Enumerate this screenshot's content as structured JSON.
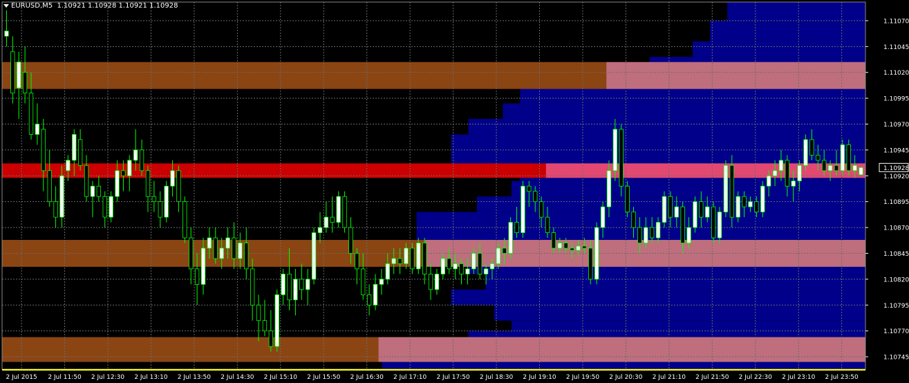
{
  "header": {
    "symbol": "EURUSD,M5",
    "ohlc": "1.10921 1.10928 1.10921 1.10928"
  },
  "colors": {
    "background": "#000000",
    "grid": "#6b6b6b",
    "candle_bull": "#ffffff",
    "candle_bear": "#000000",
    "candle_outline": "#00ff00",
    "profile": "#00008b",
    "value_area_overlay": "#ffa0ff",
    "level_major": "#cc0000",
    "level_minor": "#8b4513",
    "price_tag_bg": "#000000",
    "time_axis_accent": "#ffff00",
    "axis_text": "#ffffff"
  },
  "chart_data": {
    "type": "candlestick",
    "symbol": "EURUSD",
    "timeframe": "M5",
    "current_price": "1.10928",
    "ylim": [
      1.10733,
      1.11088
    ],
    "y_ticks": [
      "1.11070",
      "1.11045",
      "1.11020",
      "1.10995",
      "1.10970",
      "1.10945",
      "1.10920",
      "1.10895",
      "1.10870",
      "1.10845",
      "1.10820",
      "1.10795",
      "1.10770",
      "1.10745"
    ],
    "x_ticks": [
      "2 Jul 2015",
      "2 Jul 11:50",
      "2 Jul 12:30",
      "2 Jul 13:10",
      "2 Jul 13:50",
      "2 Jul 14:30",
      "2 Jul 15:10",
      "2 Jul 15:50",
      "2 Jul 16:30",
      "2 Jul 17:10",
      "2 Jul 17:50",
      "2 Jul 18:30",
      "2 Jul 19:10",
      "2 Jul 19:50",
      "2 Jul 20:30",
      "2 Jul 21:10",
      "2 Jul 21:50",
      "2 Jul 22:30",
      "2 Jul 23:10",
      "2 Jul 23:50"
    ],
    "levels": [
      {
        "kind": "minor",
        "low": 1.11004,
        "high": 1.1103
      },
      {
        "kind": "major",
        "low": 1.10918,
        "high": 1.10932
      },
      {
        "kind": "minor",
        "low": 1.10832,
        "high": 1.10858
      },
      {
        "kind": "minor",
        "low": 1.1074,
        "high": 1.10764
      }
    ],
    "value_area": [
      {
        "low": 1.11004,
        "high": 1.1103,
        "start": 0.7
      },
      {
        "low": 1.10918,
        "high": 1.10932,
        "start": 0.63
      },
      {
        "low": 1.10832,
        "high": 1.10858,
        "start": 0.49
      },
      {
        "low": 1.1074,
        "high": 1.10764,
        "start": 0.436
      }
    ],
    "volume_profile": [
      [
        1.11088,
        0.16
      ],
      [
        1.1107,
        0.18
      ],
      [
        1.1105,
        0.2
      ],
      [
        1.11035,
        0.25
      ],
      [
        1.1102,
        0.3
      ],
      [
        1.11005,
        0.4
      ],
      [
        1.1099,
        0.42
      ],
      [
        1.10975,
        0.46
      ],
      [
        1.1096,
        0.48
      ],
      [
        1.10945,
        0.48
      ],
      [
        1.1093,
        0.4
      ],
      [
        1.10915,
        0.41
      ],
      [
        1.109,
        0.45
      ],
      [
        1.10885,
        0.52
      ],
      [
        1.1087,
        0.52
      ],
      [
        1.10855,
        0.49
      ],
      [
        1.1084,
        0.46
      ],
      [
        1.10825,
        0.44
      ],
      [
        1.1081,
        0.48
      ],
      [
        1.10795,
        0.43
      ],
      [
        1.1078,
        0.41
      ],
      [
        1.1077,
        0.46
      ],
      [
        1.1075,
        0.56
      ]
    ],
    "ohlc": [
      [
        1.11055,
        1.1108,
        1.11045,
        1.1106
      ],
      [
        1.1104,
        1.11055,
        1.1099,
        1.11
      ],
      [
        1.11005,
        1.1104,
        1.10975,
        1.1103
      ],
      [
        1.1102,
        1.11045,
        1.1099,
        1.11
      ],
      [
        1.11,
        1.1102,
        1.10955,
        1.1096
      ],
      [
        1.1096,
        1.1099,
        1.1095,
        1.1097
      ],
      [
        1.10965,
        1.10975,
        1.10905,
        1.10925
      ],
      [
        1.10925,
        1.10945,
        1.1089,
        1.10895
      ],
      [
        1.10895,
        1.1091,
        1.1087,
        1.1088
      ],
      [
        1.1088,
        1.1093,
        1.1087,
        1.1092
      ],
      [
        1.10925,
        1.1094,
        1.10915,
        1.10935
      ],
      [
        1.10935,
        1.10965,
        1.1092,
        1.1096
      ],
      [
        1.10955,
        1.10965,
        1.10925,
        1.1093
      ],
      [
        1.1093,
        1.1094,
        1.10895,
        1.109
      ],
      [
        1.109,
        1.10915,
        1.1088,
        1.1091
      ],
      [
        1.1091,
        1.1092,
        1.10895,
        1.109
      ],
      [
        1.109,
        1.10905,
        1.1087,
        1.1088
      ],
      [
        1.1088,
        1.10905,
        1.10875,
        1.109
      ],
      [
        1.109,
        1.10935,
        1.10895,
        1.10925
      ],
      [
        1.10925,
        1.10935,
        1.10905,
        1.1092
      ],
      [
        1.1092,
        1.1094,
        1.10905,
        1.10935
      ],
      [
        1.10935,
        1.10965,
        1.10925,
        1.10945
      ],
      [
        1.10945,
        1.10955,
        1.1092,
        1.10925
      ],
      [
        1.10925,
        1.1093,
        1.10885,
        1.109
      ],
      [
        1.109,
        1.10915,
        1.10885,
        1.10895
      ],
      [
        1.10895,
        1.10905,
        1.1087,
        1.1088
      ],
      [
        1.1088,
        1.10915,
        1.10875,
        1.1091
      ],
      [
        1.1091,
        1.10935,
        1.109,
        1.10925
      ],
      [
        1.10925,
        1.1093,
        1.10885,
        1.10895
      ],
      [
        1.10895,
        1.109,
        1.10855,
        1.1086
      ],
      [
        1.1086,
        1.1087,
        1.10815,
        1.1083
      ],
      [
        1.1083,
        1.10845,
        1.10795,
        1.10815
      ],
      [
        1.10815,
        1.1086,
        1.10805,
        1.1085
      ],
      [
        1.1085,
        1.1087,
        1.1084,
        1.1086
      ],
      [
        1.1086,
        1.1087,
        1.10835,
        1.1084
      ],
      [
        1.1084,
        1.1086,
        1.1083,
        1.1085
      ],
      [
        1.1085,
        1.1087,
        1.1084,
        1.1086
      ],
      [
        1.1086,
        1.10875,
        1.1083,
        1.1084
      ],
      [
        1.1084,
        1.10865,
        1.1083,
        1.10855
      ],
      [
        1.10855,
        1.1087,
        1.1082,
        1.1083
      ],
      [
        1.1083,
        1.1084,
        1.1078,
        1.10795
      ],
      [
        1.10795,
        1.10805,
        1.1076,
        1.1078
      ],
      [
        1.1078,
        1.108,
        1.10765,
        1.1077
      ],
      [
        1.1077,
        1.1079,
        1.1075,
        1.10755
      ],
      [
        1.10755,
        1.1081,
        1.1075,
        1.10805
      ],
      [
        1.10805,
        1.1083,
        1.10795,
        1.10825
      ],
      [
        1.10825,
        1.1085,
        1.1079,
        1.108
      ],
      [
        1.108,
        1.1083,
        1.10785,
        1.1082
      ],
      [
        1.1082,
        1.10835,
        1.108,
        1.1081
      ],
      [
        1.1081,
        1.1083,
        1.10795,
        1.1082
      ],
      [
        1.1082,
        1.1087,
        1.10815,
        1.10865
      ],
      [
        1.10865,
        1.10885,
        1.10855,
        1.1087
      ],
      [
        1.1087,
        1.10895,
        1.10865,
        1.1088
      ],
      [
        1.1088,
        1.109,
        1.10865,
        1.10875
      ],
      [
        1.10875,
        1.10905,
        1.1087,
        1.109
      ],
      [
        1.109,
        1.10905,
        1.10865,
        1.1087
      ],
      [
        1.1087,
        1.1088,
        1.10835,
        1.10845
      ],
      [
        1.10845,
        1.1085,
        1.10815,
        1.1083
      ],
      [
        1.1083,
        1.10845,
        1.108,
        1.10805
      ],
      [
        1.10805,
        1.10815,
        1.10785,
        1.10795
      ],
      [
        1.10795,
        1.10825,
        1.1079,
        1.10815
      ],
      [
        1.10815,
        1.1083,
        1.10805,
        1.1082
      ],
      [
        1.1082,
        1.10845,
        1.10815,
        1.10835
      ],
      [
        1.10835,
        1.1085,
        1.10825,
        1.1084
      ],
      [
        1.1084,
        1.1085,
        1.10825,
        1.10835
      ],
      [
        1.10835,
        1.10855,
        1.1083,
        1.1085
      ],
      [
        1.1085,
        1.10855,
        1.10825,
        1.1083
      ],
      [
        1.1083,
        1.1086,
        1.10825,
        1.10855
      ],
      [
        1.10855,
        1.1086,
        1.10815,
        1.10825
      ],
      [
        1.10825,
        1.10835,
        1.108,
        1.1081
      ],
      [
        1.1081,
        1.1083,
        1.10805,
        1.10825
      ],
      [
        1.10825,
        1.10845,
        1.1082,
        1.1084
      ],
      [
        1.1084,
        1.1085,
        1.10825,
        1.1083
      ],
      [
        1.1083,
        1.10845,
        1.1082,
        1.10835
      ],
      [
        1.10835,
        1.1084,
        1.10815,
        1.10825
      ],
      [
        1.10825,
        1.1084,
        1.10815,
        1.1083
      ],
      [
        1.1083,
        1.1085,
        1.10825,
        1.10845
      ],
      [
        1.10845,
        1.10855,
        1.1082,
        1.10825
      ],
      [
        1.10825,
        1.10835,
        1.10815,
        1.1083
      ],
      [
        1.1083,
        1.1084,
        1.1082,
        1.10835
      ],
      [
        1.10835,
        1.10855,
        1.1083,
        1.1085
      ],
      [
        1.1085,
        1.1086,
        1.10835,
        1.10845
      ],
      [
        1.10845,
        1.1088,
        1.1084,
        1.10875
      ],
      [
        1.10875,
        1.1089,
        1.1086,
        1.10865
      ],
      [
        1.10865,
        1.10915,
        1.1086,
        1.1091
      ],
      [
        1.1091,
        1.10915,
        1.1089,
        1.10905
      ],
      [
        1.10905,
        1.1091,
        1.10885,
        1.10895
      ],
      [
        1.10895,
        1.109,
        1.1087,
        1.1088
      ],
      [
        1.1088,
        1.1089,
        1.1086,
        1.10865
      ],
      [
        1.10865,
        1.1087,
        1.10845,
        1.1085
      ],
      [
        1.1085,
        1.1086,
        1.10845,
        1.10855
      ],
      [
        1.10855,
        1.1086,
        1.10845,
        1.1085
      ],
      [
        1.1085,
        1.10855,
        1.1084,
        1.10848
      ],
      [
        1.10848,
        1.10858,
        1.10843,
        1.10852
      ],
      [
        1.10852,
        1.1086,
        1.10845,
        1.1085
      ],
      [
        1.1085,
        1.10858,
        1.10815,
        1.1082
      ],
      [
        1.1082,
        1.10875,
        1.10815,
        1.1087
      ],
      [
        1.1087,
        1.10895,
        1.1086,
        1.1089
      ],
      [
        1.1089,
        1.10935,
        1.1088,
        1.10925
      ],
      [
        1.10925,
        1.10975,
        1.10915,
        1.10965
      ],
      [
        1.10965,
        1.1097,
        1.109,
        1.1091
      ],
      [
        1.1091,
        1.10915,
        1.1088,
        1.10885
      ],
      [
        1.10885,
        1.1089,
        1.1086,
        1.1087
      ],
      [
        1.1087,
        1.1088,
        1.10845,
        1.10855
      ],
      [
        1.10855,
        1.1088,
        1.1085,
        1.1087
      ],
      [
        1.1087,
        1.1088,
        1.10855,
        1.1086
      ],
      [
        1.1086,
        1.1088,
        1.10855,
        1.10875
      ],
      [
        1.10875,
        1.10905,
        1.1087,
        1.109
      ],
      [
        1.109,
        1.10905,
        1.1087,
        1.1088
      ],
      [
        1.1088,
        1.109,
        1.1087,
        1.1089
      ],
      [
        1.1089,
        1.10895,
        1.10845,
        1.10855
      ],
      [
        1.10855,
        1.1088,
        1.1085,
        1.1087
      ],
      [
        1.1087,
        1.109,
        1.10865,
        1.10895
      ],
      [
        1.10895,
        1.10905,
        1.1087,
        1.1088
      ],
      [
        1.1088,
        1.109,
        1.10875,
        1.1089
      ],
      [
        1.1089,
        1.10895,
        1.10855,
        1.1086
      ],
      [
        1.1086,
        1.1089,
        1.10855,
        1.10885
      ],
      [
        1.10885,
        1.10935,
        1.1088,
        1.1093
      ],
      [
        1.1093,
        1.1094,
        1.1087,
        1.1088
      ],
      [
        1.1088,
        1.10905,
        1.10875,
        1.109
      ],
      [
        1.109,
        1.10905,
        1.1088,
        1.1089
      ],
      [
        1.1089,
        1.109,
        1.10885,
        1.10895
      ],
      [
        1.10895,
        1.109,
        1.1088,
        1.10885
      ],
      [
        1.10885,
        1.10915,
        1.1088,
        1.1091
      ],
      [
        1.1091,
        1.10925,
        1.109,
        1.1092
      ],
      [
        1.1092,
        1.10935,
        1.1091,
        1.10925
      ],
      [
        1.10925,
        1.10945,
        1.10915,
        1.10935
      ],
      [
        1.10935,
        1.1094,
        1.109,
        1.1091
      ],
      [
        1.1091,
        1.10925,
        1.10895,
        1.10915
      ],
      [
        1.10915,
        1.10935,
        1.10905,
        1.1093
      ],
      [
        1.1093,
        1.1096,
        1.10925,
        1.10955
      ],
      [
        1.10955,
        1.10965,
        1.10935,
        1.1094
      ],
      [
        1.1094,
        1.1095,
        1.10925,
        1.10935
      ],
      [
        1.10935,
        1.10945,
        1.1092,
        1.10925
      ],
      [
        1.10925,
        1.10935,
        1.10915,
        1.1093
      ],
      [
        1.1093,
        1.10945,
        1.1092,
        1.10925
      ],
      [
        1.10925,
        1.10955,
        1.1092,
        1.1095
      ],
      [
        1.1095,
        1.10955,
        1.1092,
        1.10925
      ],
      [
        1.10925,
        1.1094,
        1.10918,
        1.1093
      ],
      [
        1.10921,
        1.10928,
        1.10921,
        1.10928
      ]
    ]
  }
}
